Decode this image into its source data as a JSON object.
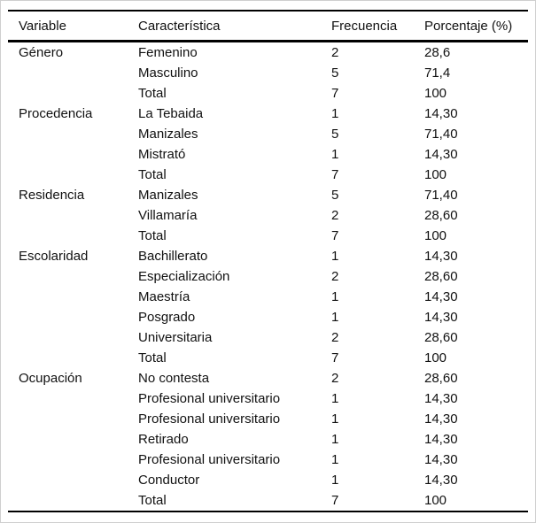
{
  "page": {
    "background_color": "#ffffff",
    "frame_border_color": "#cfcfcf",
    "rule_color": "#000000",
    "text_color": "#111111"
  },
  "table": {
    "columns": [
      "Variable",
      "Característica",
      "Frecuencia",
      "Porcentaje (%)"
    ],
    "groups": [
      {
        "variable": "Género",
        "rows": [
          {
            "caracteristica": "Femenino",
            "frecuencia": "2",
            "porcentaje": "28,6"
          },
          {
            "caracteristica": "Masculino",
            "frecuencia": "5",
            "porcentaje": "71,4"
          },
          {
            "caracteristica": "Total",
            "frecuencia": "7",
            "porcentaje": "100"
          }
        ]
      },
      {
        "variable": "Procedencia",
        "rows": [
          {
            "caracteristica": "La Tebaida",
            "frecuencia": "1",
            "porcentaje": "14,30"
          },
          {
            "caracteristica": "Manizales",
            "frecuencia": "5",
            "porcentaje": "71,40"
          },
          {
            "caracteristica": "Mistrató",
            "frecuencia": "1",
            "porcentaje": "14,30"
          },
          {
            "caracteristica": "Total",
            "frecuencia": "7",
            "porcentaje": "100"
          }
        ]
      },
      {
        "variable": "Residencia",
        "rows": [
          {
            "caracteristica": "Manizales",
            "frecuencia": "5",
            "porcentaje": "71,40"
          },
          {
            "caracteristica": "Villamaría",
            "frecuencia": "2",
            "porcentaje": "28,60"
          },
          {
            "caracteristica": "Total",
            "frecuencia": "7",
            "porcentaje": "100"
          }
        ]
      },
      {
        "variable": "Escolaridad",
        "rows": [
          {
            "caracteristica": "Bachillerato",
            "frecuencia": "1",
            "porcentaje": "14,30"
          },
          {
            "caracteristica": "Especialización",
            "frecuencia": "2",
            "porcentaje": "28,60"
          },
          {
            "caracteristica": "Maestría",
            "frecuencia": "1",
            "porcentaje": "14,30"
          },
          {
            "caracteristica": "Posgrado",
            "frecuencia": "1",
            "porcentaje": "14,30"
          },
          {
            "caracteristica": "Universitaria",
            "frecuencia": "2",
            "porcentaje": "28,60"
          },
          {
            "caracteristica": "Total",
            "frecuencia": "7",
            "porcentaje": "100"
          }
        ]
      },
      {
        "variable": "Ocupación",
        "rows": [
          {
            "caracteristica": "No contesta",
            "frecuencia": "2",
            "porcentaje": "28,60"
          },
          {
            "caracteristica": "Profesional universitario",
            "frecuencia": "1",
            "porcentaje": "14,30"
          },
          {
            "caracteristica": "Profesional universitario",
            "frecuencia": "1",
            "porcentaje": "14,30"
          },
          {
            "caracteristica": "Retirado",
            "frecuencia": "1",
            "porcentaje": "14,30"
          },
          {
            "caracteristica": "Profesional universitario",
            "frecuencia": "1",
            "porcentaje": "14,30"
          },
          {
            "caracteristica": "Conductor",
            "frecuencia": "1",
            "porcentaje": "14,30"
          },
          {
            "caracteristica": "Total",
            "frecuencia": "7",
            "porcentaje": "100"
          }
        ]
      }
    ]
  }
}
